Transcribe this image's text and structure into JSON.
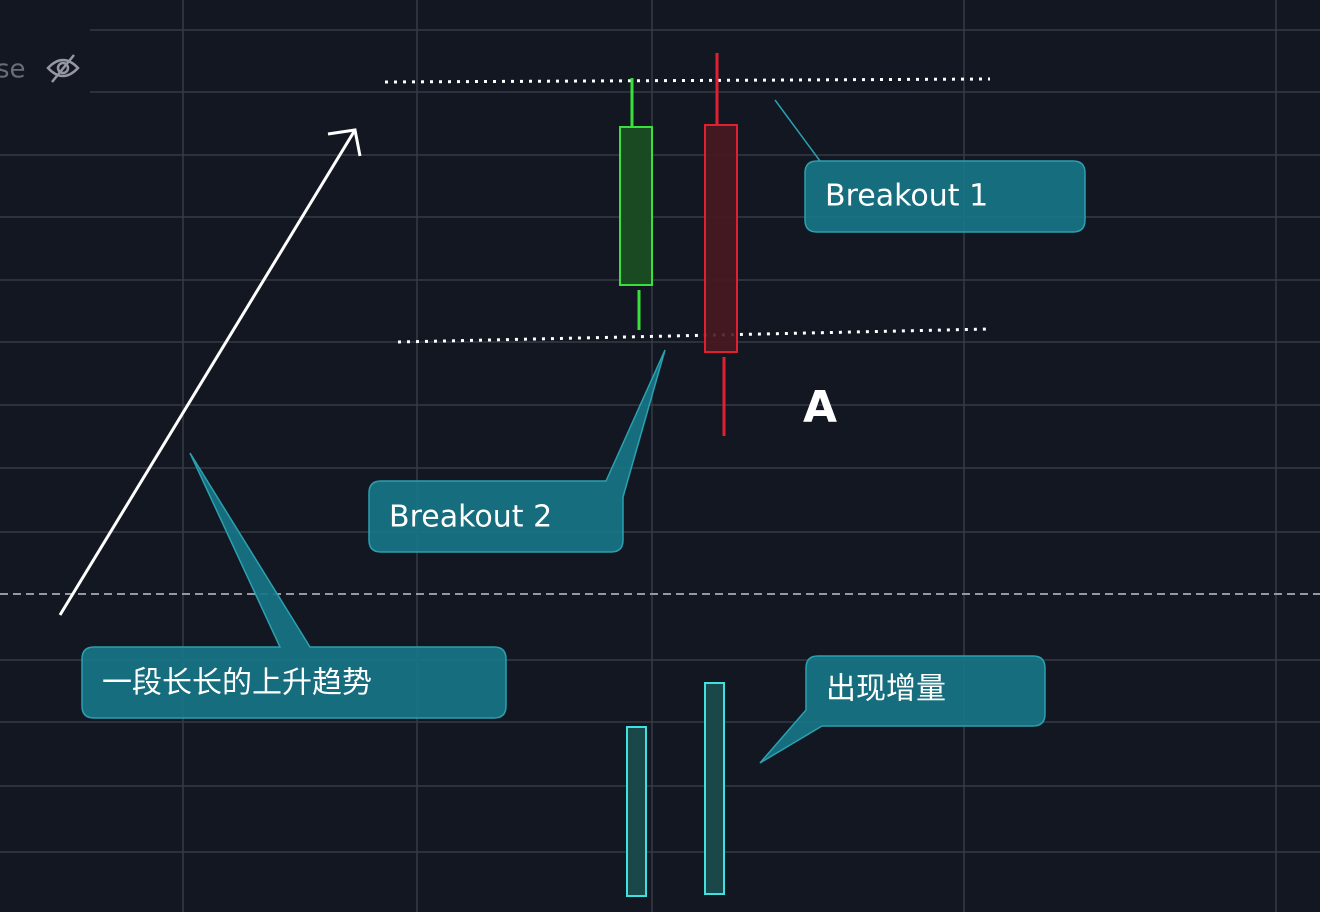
{
  "legend_fragment": "se",
  "annotations": {
    "breakout_1": "Breakout 1",
    "breakout_2": "Breakout 2",
    "trend": "一段长长的上升趋势",
    "volume": "出现增量",
    "marker": "A"
  }
}
